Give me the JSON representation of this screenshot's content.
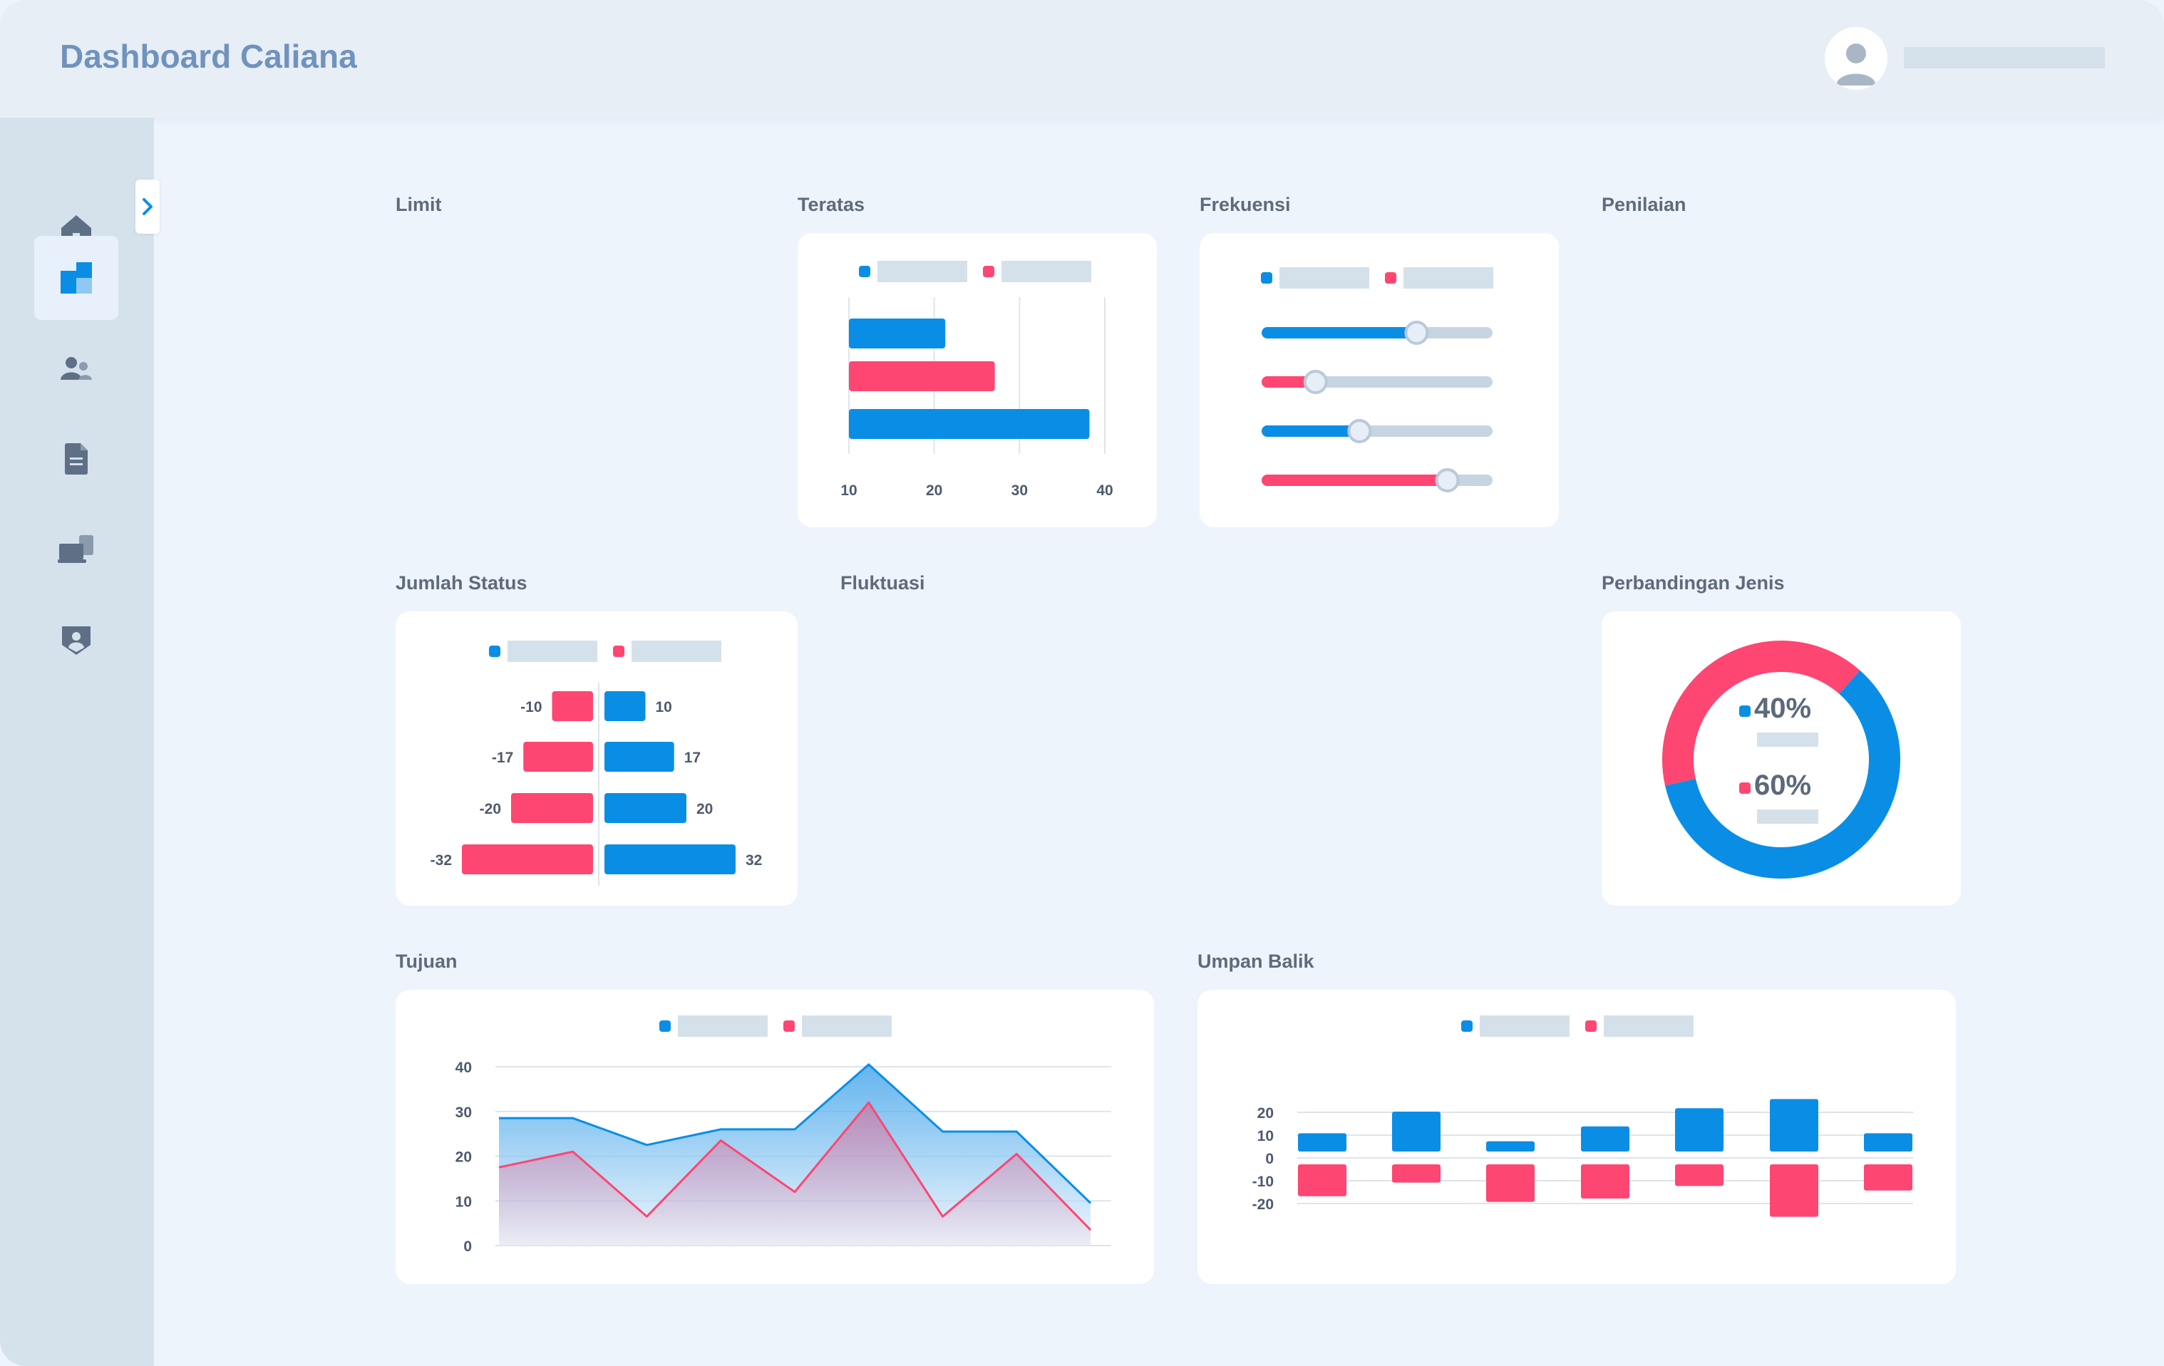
{
  "app": {
    "title": "Dashboard Caliana"
  },
  "header": {
    "user_name_placeholder": ""
  },
  "sidebar": {
    "items": [
      {
        "name": "home-icon"
      },
      {
        "name": "dashboard-icon",
        "active": true
      },
      {
        "name": "users-icon"
      },
      {
        "name": "document-icon"
      },
      {
        "name": "devices-icon"
      },
      {
        "name": "shield-user-icon"
      }
    ],
    "toggle_icon": "chevron-right-icon"
  },
  "colors": {
    "blue": "#0a8ee5",
    "pink": "#fe4672",
    "placeholder": "#d5e1ea",
    "text": "#5e6b7a"
  },
  "sections": {
    "limit": "Limit",
    "teratas": "Teratas",
    "frekuensi": "Frekuensi",
    "penilaian": "Penilaian",
    "jumlah_status": "Jumlah Status",
    "fluktuasi": "Fluktuasi",
    "perbandingan_jenis": "Perbandingan Jenis",
    "tujuan": "Tujuan",
    "umpan_balik": "Umpan Balik"
  },
  "chart_data": [
    {
      "id": "teratas",
      "type": "bar",
      "orientation": "horizontal",
      "xticks": [
        "10",
        "20",
        "30",
        "40"
      ],
      "xlim": [
        10,
        40
      ],
      "series": [
        {
          "color": "#0a8ee5",
          "values": [
            21.3,
            38.2
          ]
        },
        {
          "color": "#fe4672",
          "values": [
            27.1
          ]
        }
      ],
      "bars": [
        {
          "series": 0,
          "value": 21.3
        },
        {
          "series": 1,
          "value": 27.1
        },
        {
          "series": 0,
          "value": 38.2
        }
      ]
    },
    {
      "id": "frekuensi",
      "type": "slider",
      "sliders": [
        {
          "color": "#0a8ee5",
          "value": 0.68
        },
        {
          "color": "#fe4672",
          "value": 0.22
        },
        {
          "color": "#0a8ee5",
          "value": 0.42
        },
        {
          "color": "#fe4672",
          "value": 0.82
        }
      ]
    },
    {
      "id": "jumlah_status",
      "type": "bar",
      "orientation": "diverging",
      "rows": [
        {
          "neg_label": "-10",
          "neg": -10,
          "pos_label": "10",
          "pos": 10
        },
        {
          "neg_label": "-17",
          "neg": -17,
          "pos_label": "17",
          "pos": 17
        },
        {
          "neg_label": "-20",
          "neg": -20,
          "pos_label": "20",
          "pos": 20
        },
        {
          "neg_label": "-32",
          "neg": -32,
          "pos_label": "32",
          "pos": 32
        }
      ],
      "xlim": [
        -32,
        32
      ]
    },
    {
      "id": "perbandingan_jenis",
      "type": "pie",
      "donut": true,
      "slices": [
        {
          "label": "40%",
          "value": 40,
          "color": "#fe4672"
        },
        {
          "label": "60%",
          "value": 60,
          "color": "#0a8ee5"
        }
      ]
    },
    {
      "id": "tujuan",
      "type": "area",
      "yticks": [
        "40",
        "30",
        "20",
        "10",
        "0"
      ],
      "ylim": [
        0,
        40
      ],
      "x": [
        0,
        1,
        2,
        3,
        4,
        5,
        6,
        7,
        8
      ],
      "series": [
        {
          "color": "#0a8ee5",
          "values": [
            28.5,
            28.5,
            22.5,
            26,
            26,
            40.5,
            25.5,
            25.5,
            9.5
          ]
        },
        {
          "color": "#fe4672",
          "values": [
            17.5,
            21,
            6.5,
            23.5,
            12,
            32,
            6.5,
            20.5,
            3.5
          ]
        }
      ]
    },
    {
      "id": "umpan_balik",
      "type": "bar",
      "yticks": [
        "20",
        "10",
        "0",
        "-10",
        "-20"
      ],
      "ylim": [
        -25,
        25
      ],
      "series": [
        {
          "color": "#0a8ee5",
          "values": [
            8,
            17.5,
            4.5,
            11,
            19,
            23,
            8
          ]
        },
        {
          "color": "#fe4672",
          "values": [
            -14,
            -8,
            -16.5,
            -15,
            -9.5,
            -23,
            -11.5
          ]
        }
      ]
    }
  ]
}
